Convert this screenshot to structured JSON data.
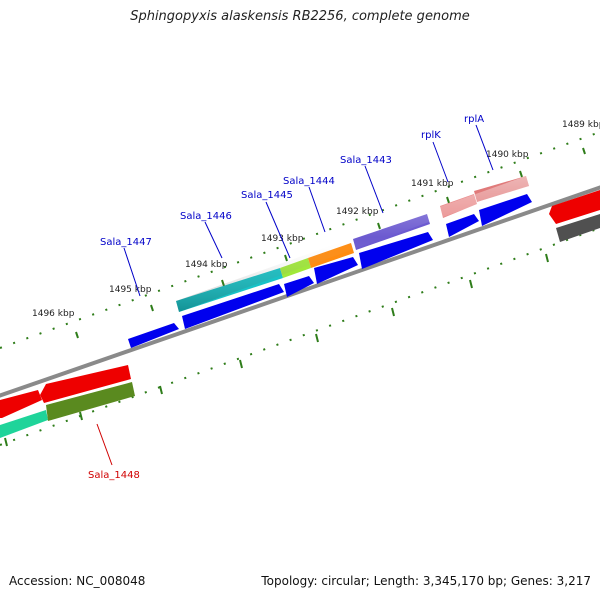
{
  "title": "Sphingopyxis alaskensis RB2256, complete genome",
  "footer": {
    "accession": "Accession: NC_008048",
    "summary": "Topology: circular; Length: 3,345,170 bp; Genes: 3,217"
  },
  "scale_labels": [
    "1496 kbp",
    "1495 kbp",
    "1494 kbp",
    "1493 kbp",
    "1492 kbp",
    "1491 kbp",
    "1490 kbp",
    "1489 kbp"
  ],
  "gene_labels": [
    {
      "text": "Sala_1447",
      "color": "#0000c8"
    },
    {
      "text": "Sala_1446",
      "color": "#0000c8"
    },
    {
      "text": "Sala_1445",
      "color": "#0000c8"
    },
    {
      "text": "Sala_1444",
      "color": "#0000c8"
    },
    {
      "text": "Sala_1443",
      "color": "#0000c8"
    },
    {
      "text": "rplK",
      "color": "#0000c8"
    },
    {
      "text": "rplA",
      "color": "#0000c8"
    },
    {
      "text": "Sala_1448",
      "color": "#d00000"
    }
  ],
  "colors": {
    "backbone": "#8a8a8a",
    "tick": "#2f7d1a",
    "cds_forward": "#0000ee",
    "cds_reverse": "#ee0000"
  }
}
